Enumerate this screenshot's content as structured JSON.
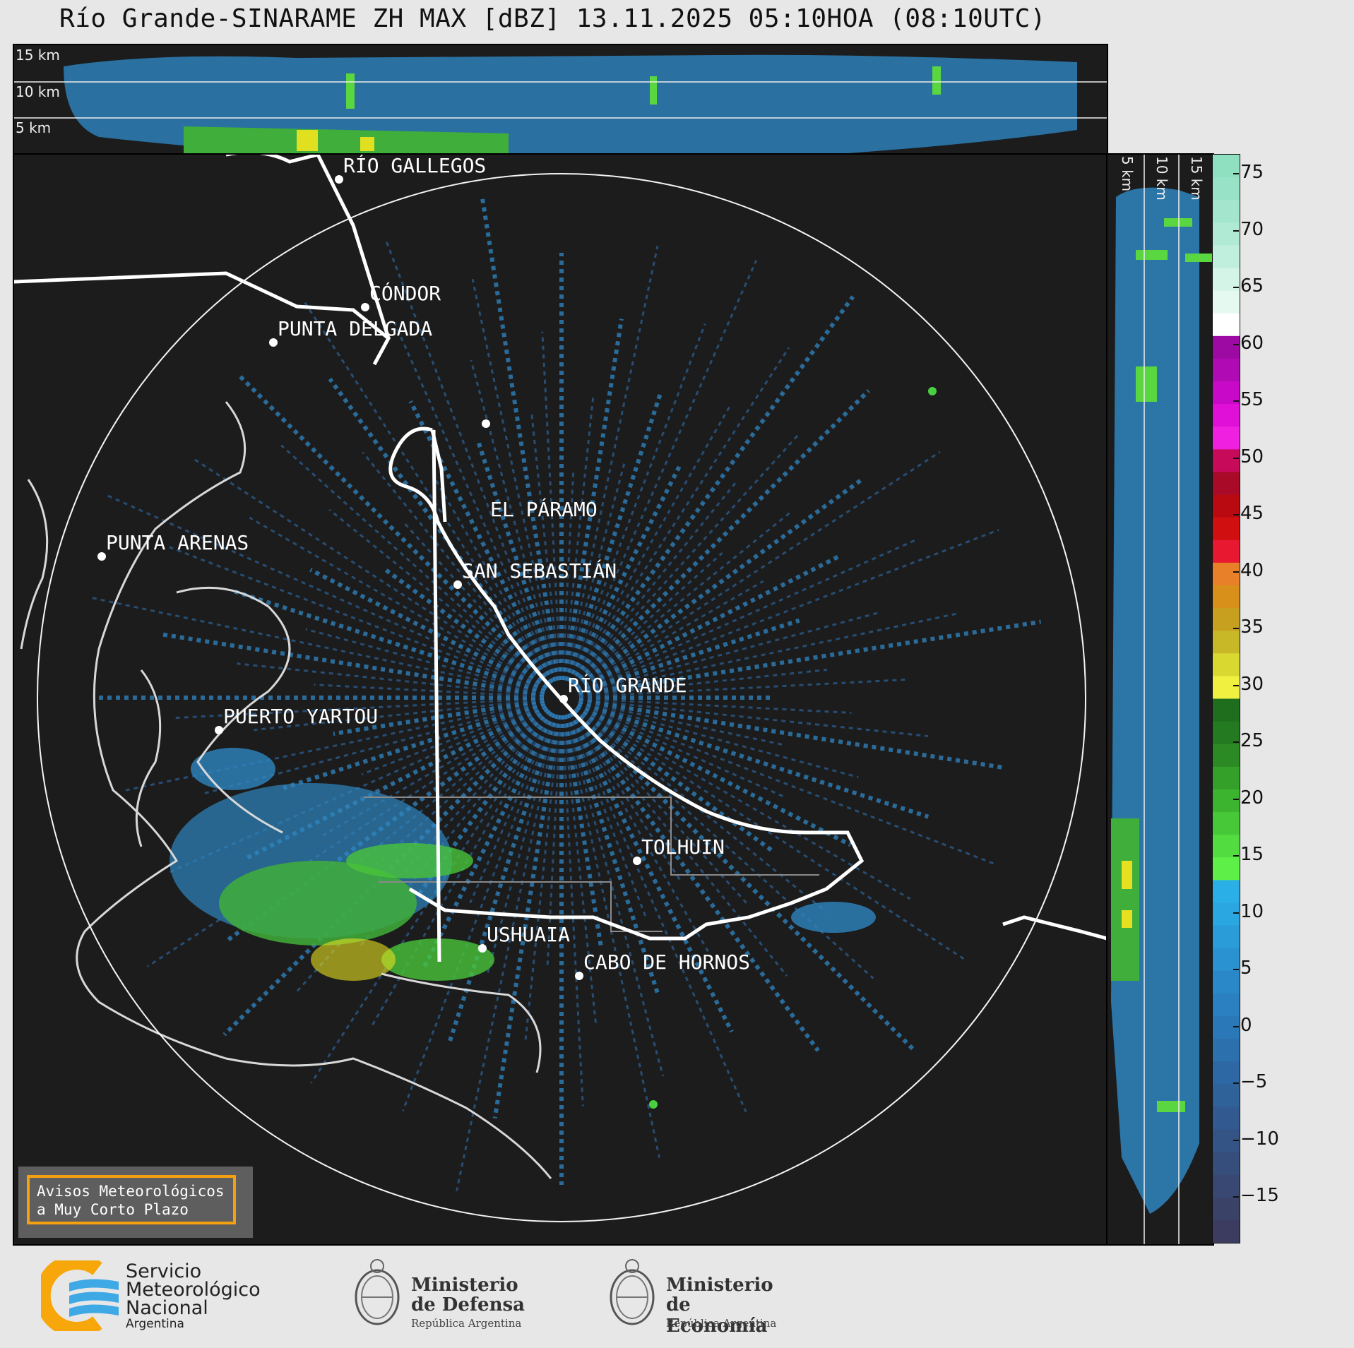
{
  "title": "Río Grande-SINARAME ZH MAX [dBZ] 13.11.2025 05:10HOA (08:10UTC)",
  "top_panel": {
    "height_labels": [
      "15 km",
      "10 km",
      "5 km"
    ]
  },
  "side_panel": {
    "height_labels": [
      "5 km",
      "10 km",
      "15 km"
    ]
  },
  "map": {
    "cities": [
      {
        "name": "RÍO GALLEGOS"
      },
      {
        "name": "CÓNDOR"
      },
      {
        "name": "PUNTA DELGADA"
      },
      {
        "name": "EL PÁRAMO"
      },
      {
        "name": "SAN SEBASTIÁN"
      },
      {
        "name": "PUNTA ARENAS"
      },
      {
        "name": "RÍO GRANDE"
      },
      {
        "name": "PUERTO YARTOU"
      },
      {
        "name": "TOLHUIN"
      },
      {
        "name": "USHUAIA"
      },
      {
        "name": "CABO DE HORNOS"
      }
    ]
  },
  "colorbar": {
    "ticks": [
      "75",
      "70",
      "65",
      "60",
      "55",
      "50",
      "45",
      "40",
      "35",
      "30",
      "25",
      "20",
      "15",
      "10",
      "5",
      "0",
      "−5",
      "−10",
      "−15"
    ]
  },
  "notice": {
    "line1": "Avisos Meteorológicos",
    "line2": "a Muy Corto Plazo"
  },
  "logos": {
    "smn": {
      "line1": "Servicio",
      "line2": "Meteorológico",
      "line3": "Nacional",
      "line4": "Argentina"
    },
    "defensa": {
      "line1": "Ministerio",
      "line2": "de Defensa",
      "line3": "República Argentina"
    },
    "economia": {
      "line1": "Ministerio",
      "line2": "de Economía",
      "line3": "República Argentina"
    }
  }
}
